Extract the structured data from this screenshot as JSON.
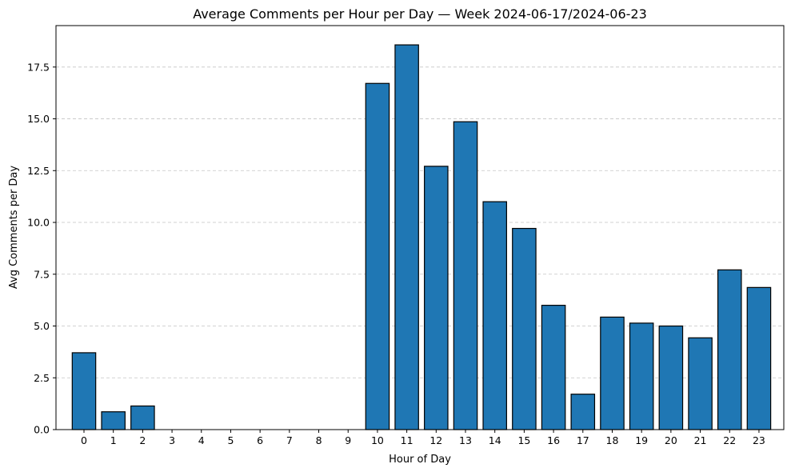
{
  "chart_data": {
    "type": "bar",
    "title": "Average Comments per Hour per Day — Week 2024-06-17/2024-06-23",
    "xlabel": "Hour of Day",
    "ylabel": "Avg Comments per Day",
    "categories": [
      "0",
      "1",
      "2",
      "3",
      "4",
      "5",
      "6",
      "7",
      "8",
      "9",
      "10",
      "11",
      "12",
      "13",
      "14",
      "15",
      "16",
      "17",
      "18",
      "19",
      "20",
      "21",
      "22",
      "23"
    ],
    "values": [
      3.71,
      0.86,
      1.14,
      0,
      0,
      0,
      0,
      0,
      0,
      0,
      16.71,
      18.57,
      12.71,
      14.86,
      11.0,
      9.71,
      6.0,
      1.71,
      5.43,
      5.14,
      5.0,
      4.43,
      7.71,
      6.86
    ],
    "ylim": [
      0,
      19.5
    ],
    "yticks": [
      "0.0",
      "2.5",
      "5.0",
      "7.5",
      "10.0",
      "12.5",
      "15.0",
      "17.5"
    ],
    "grid": "y-dashed",
    "bar_color": "#1f77b4",
    "edge_color": "#000000"
  }
}
